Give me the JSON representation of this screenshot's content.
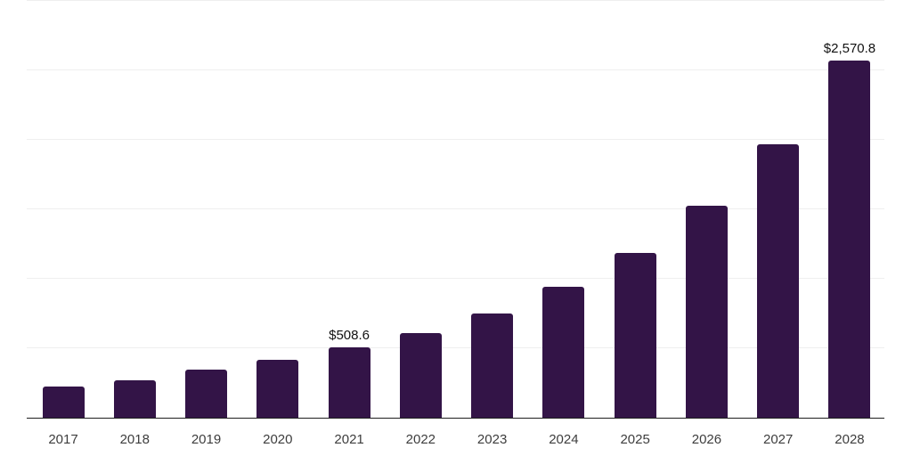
{
  "chart_data": {
    "type": "bar",
    "title": "",
    "xlabel": "",
    "ylabel": "",
    "categories": [
      "2017",
      "2018",
      "2019",
      "2020",
      "2021",
      "2022",
      "2023",
      "2024",
      "2025",
      "2026",
      "2027",
      "2028"
    ],
    "values": [
      224,
      272,
      344,
      414,
      508.6,
      610,
      747,
      941,
      1186,
      1526,
      1971,
      2570.8
    ],
    "data_labels": [
      "",
      "",
      "",
      "",
      "$508.6",
      "",
      "",
      "",
      "",
      "",
      "",
      "$2,570.8"
    ],
    "ylim": [
      0,
      3000
    ],
    "grid_step": 500,
    "grid": true,
    "legend": false,
    "colors": {
      "bar": "#331447",
      "grid_line": "#efefef",
      "axis_line": "#1f1f1f",
      "tick_label": "#3d3d3d",
      "data_label": "#111111",
      "background": "#ffffff"
    }
  }
}
